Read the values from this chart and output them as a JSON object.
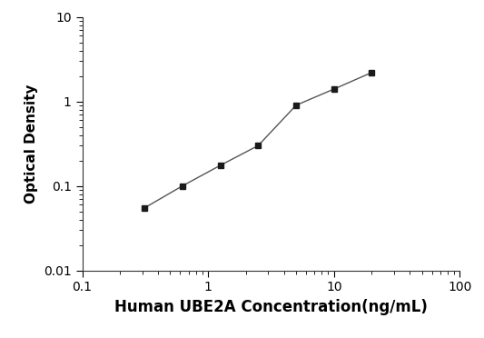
{
  "x": [
    0.313,
    0.625,
    1.25,
    2.5,
    5.0,
    10.0,
    20.0
  ],
  "y": [
    0.055,
    0.1,
    0.175,
    0.3,
    0.9,
    1.4,
    2.2
  ],
  "xlabel": "Human UBE2A Concentration(ng/mL)",
  "ylabel": "Optical Density",
  "xlim": [
    0.1,
    100
  ],
  "ylim": [
    0.01,
    10
  ],
  "line_color": "#555555",
  "marker_color": "#1a1a1a",
  "marker": "s",
  "marker_size": 5,
  "line_width": 1.0,
  "background_color": "#ffffff",
  "xlabel_fontsize": 12,
  "ylabel_fontsize": 11,
  "tick_fontsize": 10,
  "xticks": [
    0.1,
    1,
    10,
    100
  ],
  "yticks": [
    0.01,
    0.1,
    1,
    10
  ]
}
